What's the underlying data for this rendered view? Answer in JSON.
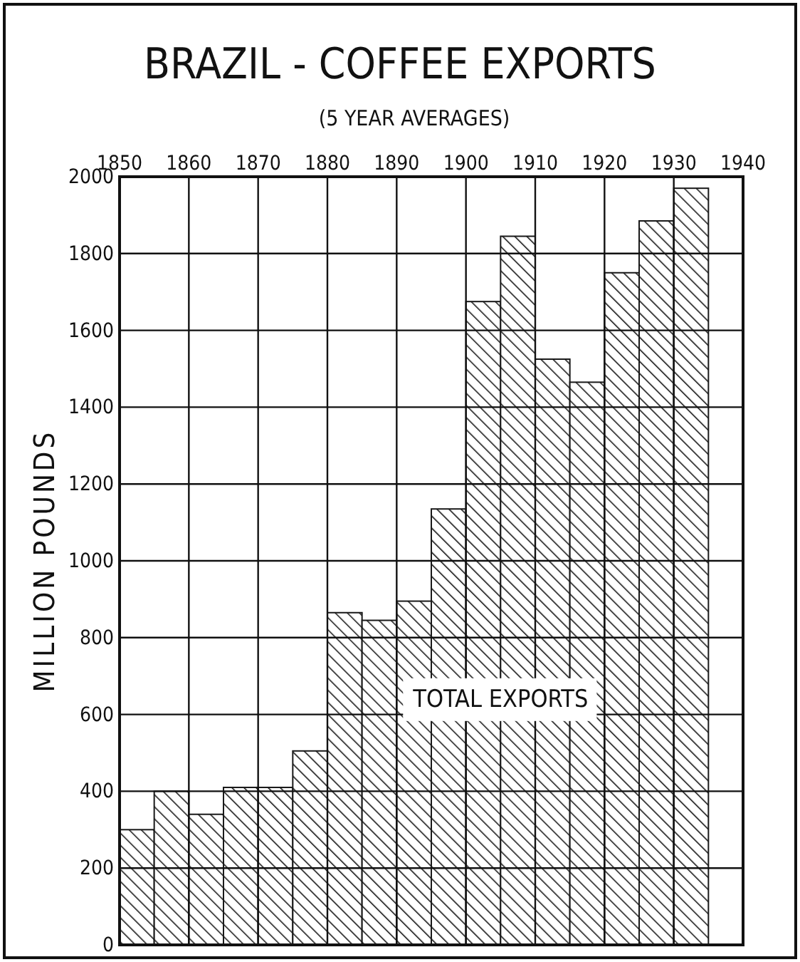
{
  "chart_data": {
    "type": "bar",
    "title": "BRAZIL - COFFEE EXPORTS",
    "subtitle": "(5 YEAR AVERAGES)",
    "ylabel": "MILLION POUNDS",
    "x": [
      1852.5,
      1857.5,
      1862.5,
      1867.5,
      1872.5,
      1877.5,
      1882.5,
      1887.5,
      1892.5,
      1897.5,
      1902.5,
      1907.5,
      1912.5,
      1917.5,
      1922.5,
      1927.5,
      1932.5
    ],
    "series": [
      {
        "name": "TOTAL EXPORTS",
        "color": "#1a1a1a",
        "values": [
          300,
          400,
          340,
          410,
          410,
          505,
          865,
          845,
          895,
          1135,
          1675,
          1845,
          1525,
          1465,
          1750,
          1885,
          1970
        ]
      }
    ],
    "xlim": [
      1850,
      1940
    ],
    "xticks": [
      1850,
      1860,
      1870,
      1880,
      1890,
      1900,
      1910,
      1920,
      1930,
      1940
    ],
    "ylim": [
      0,
      2000
    ],
    "yticks": [
      0,
      200,
      400,
      600,
      800,
      1000,
      1200,
      1400,
      1600,
      1800,
      2000
    ],
    "grid": true
  }
}
